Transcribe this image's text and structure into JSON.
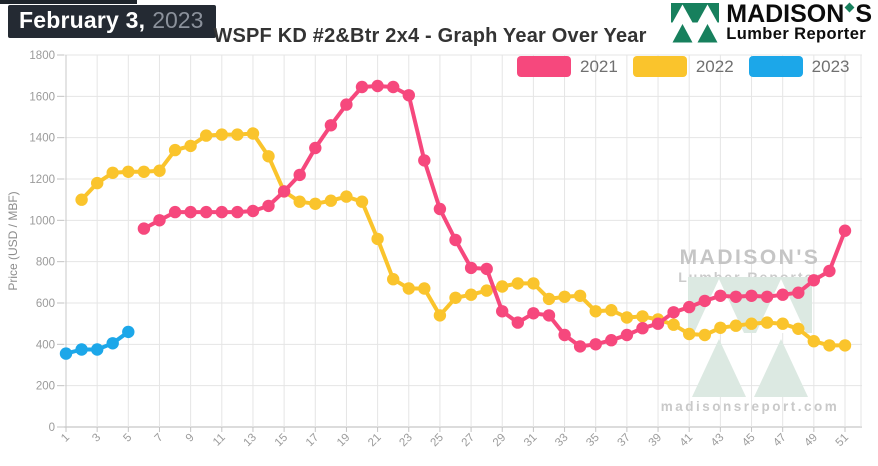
{
  "header": {
    "date_label": "February 3,",
    "date_year": "2023",
    "title": "WSPF KD #2&Btr 2x4 - Graph Year Over Year",
    "logo": {
      "name_pre": "MADISON",
      "name_post": "S",
      "subtitle": "Lumber Reporter"
    }
  },
  "watermark": {
    "brand": "MADISON'S",
    "brand_sub": "Lumber Reporter",
    "url": "madisonsreport.com"
  },
  "chart_data": {
    "type": "line",
    "title": "WSPF KD #2&Btr 2x4 - Graph Year Over Year",
    "xlabel": "",
    "ylabel": "Price (USD / MBF)",
    "x_unit": "week of year",
    "ylim": [
      0,
      1800
    ],
    "y_ticks": [
      0,
      200,
      400,
      600,
      800,
      1000,
      1200,
      1400,
      1600,
      1800
    ],
    "x_ticks": [
      1,
      3,
      5,
      7,
      9,
      11,
      13,
      15,
      17,
      19,
      21,
      23,
      25,
      27,
      29,
      31,
      33,
      35,
      37,
      39,
      41,
      43,
      45,
      47,
      49,
      51
    ],
    "grid": true,
    "legend_position": "top-right",
    "draw_order": [
      "2022",
      "2021",
      "2023"
    ],
    "series": [
      {
        "name": "2021",
        "color": "#f6487d",
        "start_week": 6,
        "values": [
          960,
          1000,
          1040,
          1040,
          1040,
          1040,
          1040,
          1045,
          1070,
          1140,
          1220,
          1350,
          1460,
          1560,
          1645,
          1650,
          1645,
          1605,
          1290,
          1055,
          905,
          770,
          765,
          560,
          505,
          550,
          540,
          445,
          390,
          400,
          420,
          445,
          478,
          500,
          555,
          580,
          610,
          635,
          630,
          635,
          630,
          640,
          650,
          710,
          755,
          950
        ]
      },
      {
        "name": "2022",
        "color": "#fac42c",
        "start_week": 2,
        "values": [
          1100,
          1180,
          1230,
          1235,
          1235,
          1240,
          1340,
          1360,
          1410,
          1415,
          1415,
          1420,
          1310,
          1140,
          1090,
          1080,
          1095,
          1115,
          1090,
          910,
          715,
          670,
          670,
          540,
          625,
          640,
          660,
          680,
          695,
          695,
          620,
          630,
          635,
          560,
          565,
          530,
          535,
          520,
          495,
          450,
          445,
          480,
          490,
          500,
          505,
          500,
          475,
          415,
          395,
          395
        ]
      },
      {
        "name": "2023",
        "color": "#1ca7e9",
        "start_week": 1,
        "values": [
          355,
          375,
          375,
          405,
          460
        ]
      }
    ]
  }
}
